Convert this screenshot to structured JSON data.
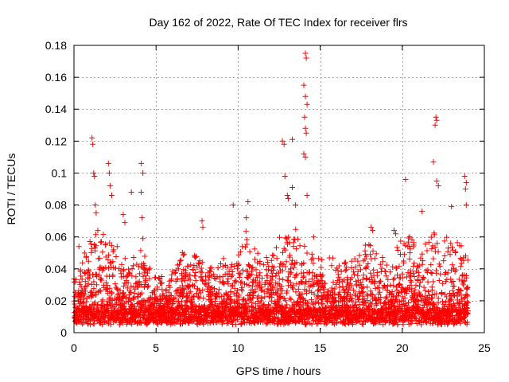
{
  "chart_data": {
    "type": "scatter",
    "title": "Day 162 of 2022, Rate Of TEC Index for receiver flrs",
    "xlabel": "GPS time / hours",
    "ylabel": "ROTI / TECUs",
    "xlim": [
      0,
      25
    ],
    "ylim": [
      0,
      0.18
    ],
    "x_ticks": [
      0,
      5,
      10,
      15,
      20,
      25
    ],
    "x_tick_labels": [
      "0",
      "5",
      "10",
      "15",
      "20",
      "25"
    ],
    "y_ticks": [
      0,
      0.02,
      0.04,
      0.06,
      0.08,
      0.1,
      0.12,
      0.14,
      0.16,
      0.18
    ],
    "y_tick_labels": [
      "0",
      "0.02",
      "0.04",
      "0.06",
      "0.08",
      "0.1",
      "0.12",
      "0.14",
      "0.16",
      "0.18"
    ],
    "grid": true,
    "marker": "+",
    "series": [
      {
        "name": "ROTI",
        "color": "#ff0000",
        "x_range": [
          0,
          24
        ],
        "typical_range": [
          0.005,
          0.035
        ],
        "sample_step_hours": 0.02,
        "notable_points": [
          {
            "x": 0.3,
            "y": 0.054
          },
          {
            "x": 1.1,
            "y": 0.122
          },
          {
            "x": 1.15,
            "y": 0.118
          },
          {
            "x": 1.2,
            "y": 0.1
          },
          {
            "x": 1.25,
            "y": 0.098
          },
          {
            "x": 1.3,
            "y": 0.08
          },
          {
            "x": 1.35,
            "y": 0.075
          },
          {
            "x": 2.1,
            "y": 0.106
          },
          {
            "x": 2.15,
            "y": 0.1
          },
          {
            "x": 2.2,
            "y": 0.092
          },
          {
            "x": 2.3,
            "y": 0.086
          },
          {
            "x": 3.0,
            "y": 0.074
          },
          {
            "x": 3.1,
            "y": 0.069
          },
          {
            "x": 3.5,
            "y": 0.088
          },
          {
            "x": 4.1,
            "y": 0.106
          },
          {
            "x": 4.2,
            "y": 0.1
          },
          {
            "x": 4.1,
            "y": 0.088
          },
          {
            "x": 4.15,
            "y": 0.072
          },
          {
            "x": 4.2,
            "y": 0.059
          },
          {
            "x": 7.8,
            "y": 0.07
          },
          {
            "x": 7.85,
            "y": 0.066
          },
          {
            "x": 9.7,
            "y": 0.08
          },
          {
            "x": 10.6,
            "y": 0.082
          },
          {
            "x": 10.5,
            "y": 0.072
          },
          {
            "x": 12.7,
            "y": 0.12
          },
          {
            "x": 12.8,
            "y": 0.118
          },
          {
            "x": 12.85,
            "y": 0.098
          },
          {
            "x": 13.0,
            "y": 0.086
          },
          {
            "x": 13.05,
            "y": 0.084
          },
          {
            "x": 13.3,
            "y": 0.121
          },
          {
            "x": 13.3,
            "y": 0.091
          },
          {
            "x": 13.5,
            "y": 0.08
          },
          {
            "x": 14.1,
            "y": 0.175
          },
          {
            "x": 14.15,
            "y": 0.172
          },
          {
            "x": 14.0,
            "y": 0.155
          },
          {
            "x": 14.1,
            "y": 0.148
          },
          {
            "x": 14.2,
            "y": 0.143
          },
          {
            "x": 14.05,
            "y": 0.135
          },
          {
            "x": 14.1,
            "y": 0.128
          },
          {
            "x": 14.15,
            "y": 0.125
          },
          {
            "x": 14.0,
            "y": 0.112
          },
          {
            "x": 14.1,
            "y": 0.11
          },
          {
            "x": 14.2,
            "y": 0.086
          },
          {
            "x": 14.6,
            "y": 0.06
          },
          {
            "x": 18.1,
            "y": 0.066
          },
          {
            "x": 18.2,
            "y": 0.064
          },
          {
            "x": 19.5,
            "y": 0.064
          },
          {
            "x": 19.6,
            "y": 0.062
          },
          {
            "x": 20.2,
            "y": 0.096
          },
          {
            "x": 21.2,
            "y": 0.076
          },
          {
            "x": 21.9,
            "y": 0.107
          },
          {
            "x": 22.05,
            "y": 0.135
          },
          {
            "x": 22.1,
            "y": 0.133
          },
          {
            "x": 22.0,
            "y": 0.13
          },
          {
            "x": 22.1,
            "y": 0.095
          },
          {
            "x": 22.2,
            "y": 0.092
          },
          {
            "x": 23.0,
            "y": 0.079
          },
          {
            "x": 23.8,
            "y": 0.098
          },
          {
            "x": 23.9,
            "y": 0.094
          },
          {
            "x": 23.85,
            "y": 0.09
          },
          {
            "x": 23.9,
            "y": 0.08
          }
        ]
      }
    ]
  }
}
